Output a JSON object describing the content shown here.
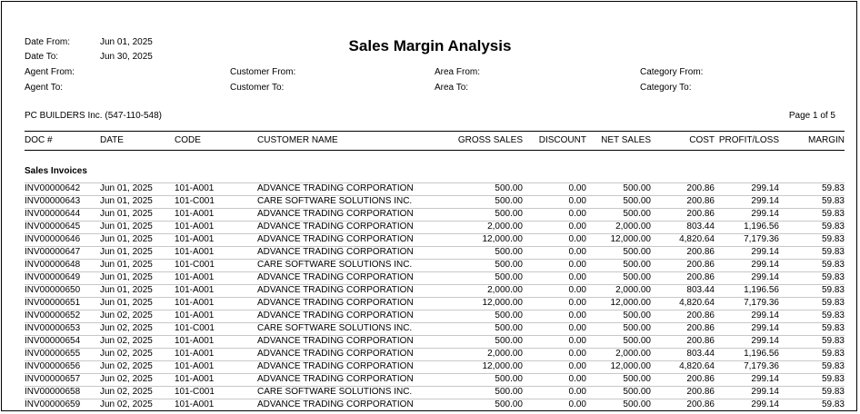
{
  "report": {
    "title": "Sales Margin Analysis",
    "company": "PC BUILDERS Inc. (547-110-548)",
    "page": "Page 1 of 5",
    "section": "Sales Invoices"
  },
  "filters": {
    "date_from_label": "Date From:",
    "date_from_value": "Jun 01, 2025",
    "date_to_label": "Date To:",
    "date_to_value": "Jun 30, 2025",
    "agent_from_label": "Agent From:",
    "agent_to_label": "Agent To:",
    "customer_from_label": "Customer From:",
    "customer_to_label": "Customer To:",
    "area_from_label": "Area From:",
    "area_to_label": "Area To:",
    "category_from_label": "Category From:",
    "category_to_label": "Category To:"
  },
  "columns": {
    "doc": "DOC #",
    "date": "DATE",
    "code": "CODE",
    "customer": "CUSTOMER NAME",
    "gross": "GROSS SALES",
    "discount": "DISCOUNT",
    "net": "NET SALES",
    "cost": "COST",
    "pl": "PROFIT/LOSS",
    "margin": "MARGIN"
  },
  "rows": [
    {
      "doc": "INV00000642",
      "date": "Jun 01, 2025",
      "code": "101-A001",
      "customer": "ADVANCE TRADING CORPORATION",
      "gross": "500.00",
      "discount": "0.00",
      "net": "500.00",
      "cost": "200.86",
      "pl": "299.14",
      "margin": "59.83"
    },
    {
      "doc": "INV00000643",
      "date": "Jun 01, 2025",
      "code": "101-C001",
      "customer": "CARE SOFTWARE SOLUTIONS INC.",
      "gross": "500.00",
      "discount": "0.00",
      "net": "500.00",
      "cost": "200.86",
      "pl": "299.14",
      "margin": "59.83"
    },
    {
      "doc": "INV00000644",
      "date": "Jun 01, 2025",
      "code": "101-A001",
      "customer": "ADVANCE TRADING CORPORATION",
      "gross": "500.00",
      "discount": "0.00",
      "net": "500.00",
      "cost": "200.86",
      "pl": "299.14",
      "margin": "59.83"
    },
    {
      "doc": "INV00000645",
      "date": "Jun 01, 2025",
      "code": "101-A001",
      "customer": "ADVANCE TRADING CORPORATION",
      "gross": "2,000.00",
      "discount": "0.00",
      "net": "2,000.00",
      "cost": "803.44",
      "pl": "1,196.56",
      "margin": "59.83"
    },
    {
      "doc": "INV00000646",
      "date": "Jun 01, 2025",
      "code": "101-A001",
      "customer": "ADVANCE TRADING CORPORATION",
      "gross": "12,000.00",
      "discount": "0.00",
      "net": "12,000.00",
      "cost": "4,820.64",
      "pl": "7,179.36",
      "margin": "59.83"
    },
    {
      "doc": "INV00000647",
      "date": "Jun 01, 2025",
      "code": "101-A001",
      "customer": "ADVANCE TRADING CORPORATION",
      "gross": "500.00",
      "discount": "0.00",
      "net": "500.00",
      "cost": "200.86",
      "pl": "299.14",
      "margin": "59.83"
    },
    {
      "doc": "INV00000648",
      "date": "Jun 01, 2025",
      "code": "101-C001",
      "customer": "CARE SOFTWARE SOLUTIONS INC.",
      "gross": "500.00",
      "discount": "0.00",
      "net": "500.00",
      "cost": "200.86",
      "pl": "299.14",
      "margin": "59.83"
    },
    {
      "doc": "INV00000649",
      "date": "Jun 01, 2025",
      "code": "101-A001",
      "customer": "ADVANCE TRADING CORPORATION",
      "gross": "500.00",
      "discount": "0.00",
      "net": "500.00",
      "cost": "200.86",
      "pl": "299.14",
      "margin": "59.83"
    },
    {
      "doc": "INV00000650",
      "date": "Jun 01, 2025",
      "code": "101-A001",
      "customer": "ADVANCE TRADING CORPORATION",
      "gross": "2,000.00",
      "discount": "0.00",
      "net": "2,000.00",
      "cost": "803.44",
      "pl": "1,196.56",
      "margin": "59.83"
    },
    {
      "doc": "INV00000651",
      "date": "Jun 01, 2025",
      "code": "101-A001",
      "customer": "ADVANCE TRADING CORPORATION",
      "gross": "12,000.00",
      "discount": "0.00",
      "net": "12,000.00",
      "cost": "4,820.64",
      "pl": "7,179.36",
      "margin": "59.83"
    },
    {
      "doc": "INV00000652",
      "date": "Jun 02, 2025",
      "code": "101-A001",
      "customer": "ADVANCE TRADING CORPORATION",
      "gross": "500.00",
      "discount": "0.00",
      "net": "500.00",
      "cost": "200.86",
      "pl": "299.14",
      "margin": "59.83"
    },
    {
      "doc": "INV00000653",
      "date": "Jun 02, 2025",
      "code": "101-C001",
      "customer": "CARE SOFTWARE SOLUTIONS INC.",
      "gross": "500.00",
      "discount": "0.00",
      "net": "500.00",
      "cost": "200.86",
      "pl": "299.14",
      "margin": "59.83"
    },
    {
      "doc": "INV00000654",
      "date": "Jun 02, 2025",
      "code": "101-A001",
      "customer": "ADVANCE TRADING CORPORATION",
      "gross": "500.00",
      "discount": "0.00",
      "net": "500.00",
      "cost": "200.86",
      "pl": "299.14",
      "margin": "59.83"
    },
    {
      "doc": "INV00000655",
      "date": "Jun 02, 2025",
      "code": "101-A001",
      "customer": "ADVANCE TRADING CORPORATION",
      "gross": "2,000.00",
      "discount": "0.00",
      "net": "2,000.00",
      "cost": "803.44",
      "pl": "1,196.56",
      "margin": "59.83"
    },
    {
      "doc": "INV00000656",
      "date": "Jun 02, 2025",
      "code": "101-A001",
      "customer": "ADVANCE TRADING CORPORATION",
      "gross": "12,000.00",
      "discount": "0.00",
      "net": "12,000.00",
      "cost": "4,820.64",
      "pl": "7,179.36",
      "margin": "59.83"
    },
    {
      "doc": "INV00000657",
      "date": "Jun 02, 2025",
      "code": "101-A001",
      "customer": "ADVANCE TRADING CORPORATION",
      "gross": "500.00",
      "discount": "0.00",
      "net": "500.00",
      "cost": "200.86",
      "pl": "299.14",
      "margin": "59.83"
    },
    {
      "doc": "INV00000658",
      "date": "Jun 02, 2025",
      "code": "101-C001",
      "customer": "CARE SOFTWARE SOLUTIONS INC.",
      "gross": "500.00",
      "discount": "0.00",
      "net": "500.00",
      "cost": "200.86",
      "pl": "299.14",
      "margin": "59.83"
    },
    {
      "doc": "INV00000659",
      "date": "Jun 02, 2025",
      "code": "101-A001",
      "customer": "ADVANCE TRADING CORPORATION",
      "gross": "500.00",
      "discount": "0.00",
      "net": "500.00",
      "cost": "200.86",
      "pl": "299.14",
      "margin": "59.83"
    }
  ]
}
